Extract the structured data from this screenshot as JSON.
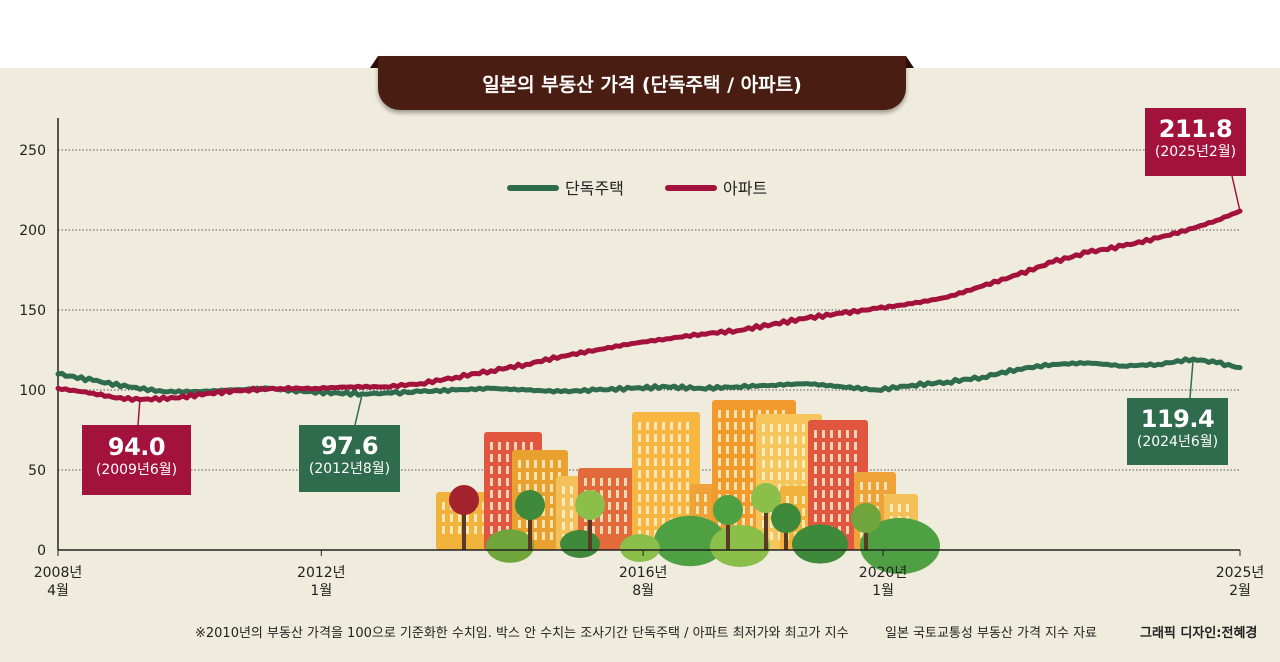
{
  "title": "일본의 부동산 가격 (단독주택 / 아파트)",
  "chart_data": {
    "type": "line",
    "title": "일본의 부동산 가격 (단독주택 / 아파트)",
    "xlabel": "",
    "ylabel": "",
    "ylim": [
      0,
      270
    ],
    "yticks": [
      "0",
      "50",
      "100",
      "150",
      "200",
      "250"
    ],
    "x_ticks": [
      {
        "line1": "2008년",
        "line2": "4월",
        "date": "2008-04"
      },
      {
        "line1": "2012년",
        "line2": "1월",
        "date": "2012-01"
      },
      {
        "line1": "2016년",
        "line2": "8월",
        "date": "2016-08"
      },
      {
        "line1": "2020년",
        "line2": "1월",
        "date": "2020-01"
      },
      {
        "line1": "2025년",
        "line2": "2월",
        "date": "2025-02"
      }
    ],
    "grid": "horizontal dotted",
    "legend_placement": "top-right",
    "series": [
      {
        "name": "단독주택",
        "color": "#2f6b4d",
        "points": [
          [
            "2008-04",
            110
          ],
          [
            "2008-10",
            106
          ],
          [
            "2009-04",
            102
          ],
          [
            "2009-10",
            99
          ],
          [
            "2010-04",
            99
          ],
          [
            "2010-10",
            100
          ],
          [
            "2011-04",
            101
          ],
          [
            "2011-10",
            99
          ],
          [
            "2012-04",
            98
          ],
          [
            "2012-08",
            97.6
          ],
          [
            "2013-01",
            98
          ],
          [
            "2013-06",
            99
          ],
          [
            "2013-12",
            100
          ],
          [
            "2014-06",
            101
          ],
          [
            "2014-12",
            100
          ],
          [
            "2015-06",
            99
          ],
          [
            "2015-12",
            100
          ],
          [
            "2016-06",
            101
          ],
          [
            "2016-12",
            102
          ],
          [
            "2017-06",
            101
          ],
          [
            "2017-12",
            102
          ],
          [
            "2018-06",
            103
          ],
          [
            "2018-12",
            104
          ],
          [
            "2019-06",
            102
          ],
          [
            "2019-12",
            100
          ],
          [
            "2020-06",
            103
          ],
          [
            "2020-12",
            105
          ],
          [
            "2021-06",
            108
          ],
          [
            "2021-12",
            113
          ],
          [
            "2022-06",
            116
          ],
          [
            "2022-12",
            117
          ],
          [
            "2023-06",
            115
          ],
          [
            "2023-12",
            116
          ],
          [
            "2024-06",
            119.4
          ],
          [
            "2024-10",
            117
          ],
          [
            "2025-02",
            114
          ]
        ]
      },
      {
        "name": "아파트",
        "color": "#a3123c",
        "points": [
          [
            "2008-04",
            101
          ],
          [
            "2008-10",
            98
          ],
          [
            "2009-02",
            95
          ],
          [
            "2009-06",
            94.0
          ],
          [
            "2009-12",
            95
          ],
          [
            "2010-06",
            98
          ],
          [
            "2010-12",
            100
          ],
          [
            "2011-06",
            101
          ],
          [
            "2011-12",
            101
          ],
          [
            "2012-06",
            102
          ],
          [
            "2012-12",
            102
          ],
          [
            "2013-06",
            104
          ],
          [
            "2013-12",
            108
          ],
          [
            "2014-06",
            112
          ],
          [
            "2014-12",
            116
          ],
          [
            "2015-06",
            121
          ],
          [
            "2015-12",
            125
          ],
          [
            "2016-06",
            129
          ],
          [
            "2016-12",
            132
          ],
          [
            "2017-06",
            135
          ],
          [
            "2017-12",
            137
          ],
          [
            "2018-06",
            141
          ],
          [
            "2018-12",
            145
          ],
          [
            "2019-06",
            148
          ],
          [
            "2019-12",
            151
          ],
          [
            "2020-06",
            154
          ],
          [
            "2020-12",
            158
          ],
          [
            "2021-06",
            165
          ],
          [
            "2021-12",
            172
          ],
          [
            "2022-06",
            180
          ],
          [
            "2022-12",
            186
          ],
          [
            "2023-06",
            190
          ],
          [
            "2023-12",
            195
          ],
          [
            "2024-06",
            201
          ],
          [
            "2024-10",
            206
          ],
          [
            "2025-02",
            211.8
          ]
        ]
      }
    ],
    "annotations": [
      {
        "value": "94.0",
        "date_label": "(2009년6월)",
        "series": "아파트",
        "date": "2009-06",
        "y": 94.0
      },
      {
        "value": "97.6",
        "date_label": "(2012년8월)",
        "series": "단독주택",
        "date": "2012-08",
        "y": 97.6
      },
      {
        "value": "119.4",
        "date_label": "(2024년6월)",
        "series": "단독주택",
        "date": "2024-06",
        "y": 119.4
      },
      {
        "value": "211.8",
        "date_label": "(2025년2월)",
        "series": "아파트",
        "date": "2025-02",
        "y": 211.8
      }
    ]
  },
  "footnote": "※2010년의 부동산 가격을 100으로 기준화한 수치임. 박스 안 수치는 조사기간 단독주택 / 아파트 최저가와 최고가 지수",
  "source": "일본 국토교통성 부동산 가격 지수 자료",
  "credit": "그래픽 디자인:전혜경"
}
